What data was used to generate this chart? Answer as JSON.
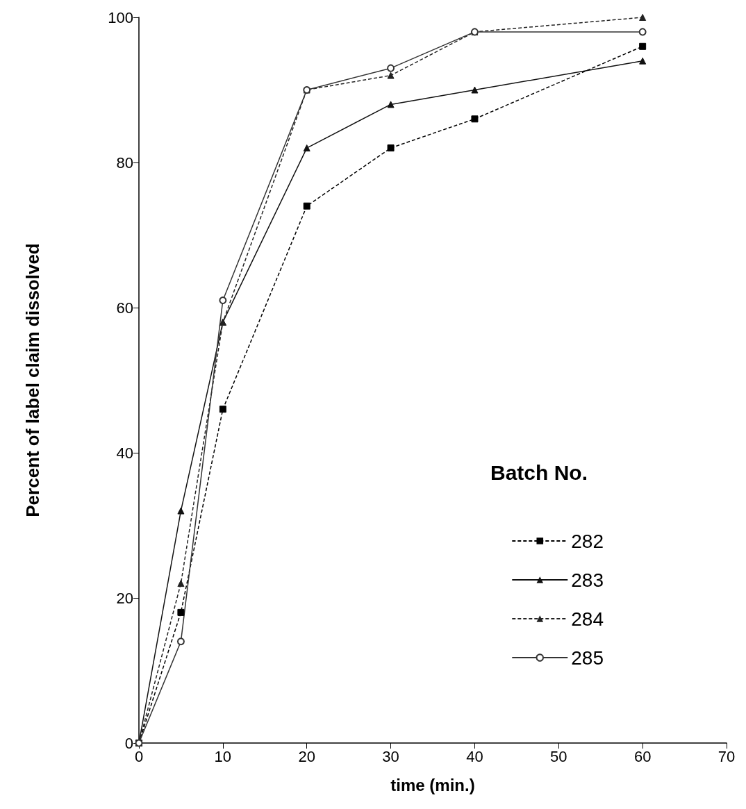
{
  "chart_data": {
    "type": "line",
    "xlabel": "time (min.)",
    "ylabel": "Percent of label claim dissolved",
    "legend_title": "Batch No.",
    "legend": "bottom right",
    "grid": false,
    "x": [
      0,
      5,
      10,
      20,
      30,
      40,
      60
    ],
    "xlim": [
      0,
      70
    ],
    "xticks": [
      0,
      10,
      20,
      30,
      40,
      50,
      60,
      70
    ],
    "ylim": [
      0,
      100
    ],
    "yticks": [
      0,
      20,
      40,
      60,
      80,
      100
    ],
    "series": [
      {
        "name": "282",
        "color": "#000000",
        "line_style": "dashed",
        "marker": "square",
        "values": [
          0,
          18,
          46,
          74,
          82,
          86,
          96
        ]
      },
      {
        "name": "283",
        "color": "#111111",
        "line_style": "solid",
        "marker": "triangle",
        "values": [
          0,
          32,
          58,
          82,
          88,
          90,
          94
        ]
      },
      {
        "name": "284",
        "color": "#222222",
        "line_style": "dashed",
        "marker": "triangle",
        "values": [
          0,
          22,
          58,
          90,
          92,
          98,
          100
        ]
      },
      {
        "name": "285",
        "color": "#333333",
        "line_style": "solid",
        "marker": "circle",
        "values": [
          0,
          14,
          61,
          90,
          93,
          98,
          98
        ]
      }
    ]
  }
}
